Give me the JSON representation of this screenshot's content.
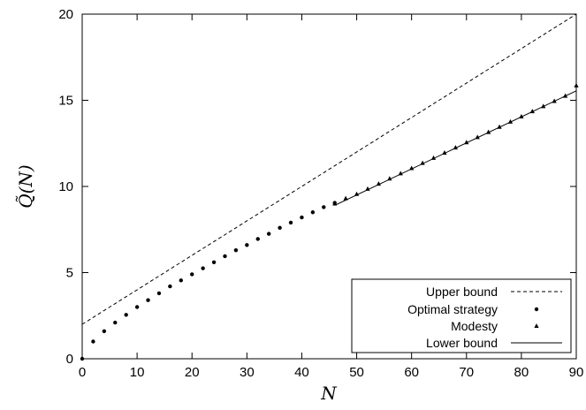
{
  "chart_data": {
    "type": "line",
    "title": "",
    "xlabel": "N",
    "ylabel": "Q̃(N)",
    "xlim": [
      0,
      90
    ],
    "ylim": [
      0,
      20
    ],
    "xticks": [
      0,
      10,
      20,
      30,
      40,
      50,
      60,
      70,
      80,
      90
    ],
    "yticks": [
      0,
      5,
      10,
      15,
      20
    ],
    "grid": false,
    "legend_position": "bottom-right",
    "series": [
      {
        "name": "Upper bound",
        "style": "dashed-line",
        "x": [
          0,
          90
        ],
        "y": [
          2,
          20
        ]
      },
      {
        "name": "Optimal strategy",
        "style": "dot-marker",
        "x": [
          0,
          2,
          4,
          6,
          8,
          10,
          12,
          14,
          16,
          18,
          20,
          22,
          24,
          26,
          28,
          30,
          32,
          34,
          36,
          38,
          40,
          42,
          44,
          46
        ],
        "y": [
          0,
          1.0,
          1.6,
          2.1,
          2.55,
          3.0,
          3.4,
          3.8,
          4.2,
          4.55,
          4.9,
          5.25,
          5.6,
          5.95,
          6.3,
          6.6,
          6.95,
          7.25,
          7.6,
          7.9,
          8.2,
          8.5,
          8.8,
          9.05
        ]
      },
      {
        "name": "Modesty",
        "style": "triangle-marker",
        "x": [
          46,
          48,
          50,
          52,
          54,
          56,
          58,
          60,
          62,
          64,
          66,
          68,
          70,
          72,
          74,
          76,
          78,
          80,
          82,
          84,
          86,
          88,
          90
        ],
        "y": [
          9.0,
          9.3,
          9.55,
          9.85,
          10.15,
          10.45,
          10.75,
          11.05,
          11.35,
          11.65,
          11.95,
          12.25,
          12.55,
          12.85,
          13.15,
          13.45,
          13.75,
          14.05,
          14.35,
          14.65,
          14.95,
          15.25,
          15.85
        ]
      },
      {
        "name": "Lower bound",
        "style": "solid-line",
        "x": [
          46,
          90
        ],
        "y": [
          8.9,
          15.55
        ]
      }
    ]
  }
}
